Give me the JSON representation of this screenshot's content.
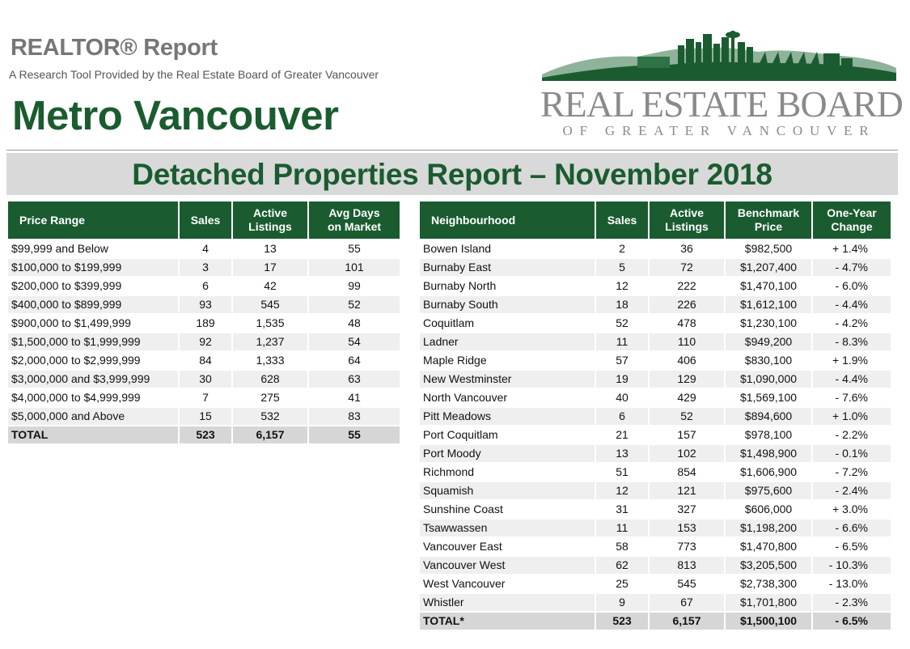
{
  "header": {
    "report_title": "REALTOR® Report",
    "tagline": "A Research Tool Provided by the Real Estate Board of Greater Vancouver",
    "region": "Metro Vancouver"
  },
  "logo": {
    "name": "REAL ESTATE BOARD",
    "subtitle": "OF GREATER VANCOUVER",
    "colors": {
      "green": "#1a5c2f",
      "grey": "#8a8a8a"
    }
  },
  "banner": {
    "title": "Detached Properties Report – November 2018"
  },
  "price_table": {
    "columns": [
      "Price Range",
      "Sales",
      "Active Listings",
      "Avg Days on Market"
    ],
    "rows": [
      [
        "$99,999 and Below",
        "4",
        "13",
        "55"
      ],
      [
        "$100,000 to $199,999",
        "3",
        "17",
        "101"
      ],
      [
        "$200,000 to $399,999",
        "6",
        "42",
        "99"
      ],
      [
        "$400,000 to $899,999",
        "93",
        "545",
        "52"
      ],
      [
        "$900,000 to $1,499,999",
        "189",
        "1,535",
        "48"
      ],
      [
        "$1,500,000 to $1,999,999",
        "92",
        "1,237",
        "54"
      ],
      [
        "$2,000,000 to $2,999,999",
        "84",
        "1,333",
        "64"
      ],
      [
        "$3,000,000 and $3,999,999",
        "30",
        "628",
        "63"
      ],
      [
        "$4,000,000 to $4,999,999",
        "7",
        "275",
        "41"
      ],
      [
        "$5,000,000 and Above",
        "15",
        "532",
        "83"
      ]
    ],
    "total": [
      "TOTAL",
      "523",
      "6,157",
      "55"
    ]
  },
  "neighbourhood_table": {
    "columns": [
      "Neighbourhood",
      "Sales",
      "Active Listings",
      "Benchmark Price",
      "One-Year Change"
    ],
    "rows": [
      [
        "Bowen Island",
        "2",
        "36",
        "$982,500",
        "+ 1.4%"
      ],
      [
        "Burnaby East",
        "5",
        "72",
        "$1,207,400",
        "- 4.7%"
      ],
      [
        "Burnaby North",
        "12",
        "222",
        "$1,470,100",
        "- 6.0%"
      ],
      [
        "Burnaby South",
        "18",
        "226",
        "$1,612,100",
        "- 4.4%"
      ],
      [
        "Coquitlam",
        "52",
        "478",
        "$1,230,100",
        "- 4.2%"
      ],
      [
        "Ladner",
        "11",
        "110",
        "$949,200",
        "- 8.3%"
      ],
      [
        "Maple Ridge",
        "57",
        "406",
        "$830,100",
        "+ 1.9%"
      ],
      [
        "New Westminster",
        "19",
        "129",
        "$1,090,000",
        "- 4.4%"
      ],
      [
        "North Vancouver",
        "40",
        "429",
        "$1,569,100",
        "- 7.6%"
      ],
      [
        "Pitt Meadows",
        "6",
        "52",
        "$894,600",
        "+ 1.0%"
      ],
      [
        "Port Coquitlam",
        "21",
        "157",
        "$978,100",
        "- 2.2%"
      ],
      [
        "Port Moody",
        "13",
        "102",
        "$1,498,900",
        "- 0.1%"
      ],
      [
        "Richmond",
        "51",
        "854",
        "$1,606,900",
        "- 7.2%"
      ],
      [
        "Squamish",
        "12",
        "121",
        "$975,600",
        "- 2.4%"
      ],
      [
        "Sunshine Coast",
        "31",
        "327",
        "$606,000",
        "+ 3.0%"
      ],
      [
        "Tsawwassen",
        "11",
        "153",
        "$1,198,200",
        "- 6.6%"
      ],
      [
        "Vancouver East",
        "58",
        "773",
        "$1,470,800",
        "- 6.5%"
      ],
      [
        "Vancouver West",
        "62",
        "813",
        "$3,205,500",
        "- 10.3%"
      ],
      [
        "West Vancouver",
        "25",
        "545",
        "$2,738,300",
        "- 13.0%"
      ],
      [
        "Whistler",
        "9",
        "67",
        "$1,701,800",
        "- 2.3%"
      ]
    ],
    "total": [
      "TOTAL*",
      "523",
      "6,157",
      "$1,500,100",
      "- 6.5%"
    ]
  }
}
